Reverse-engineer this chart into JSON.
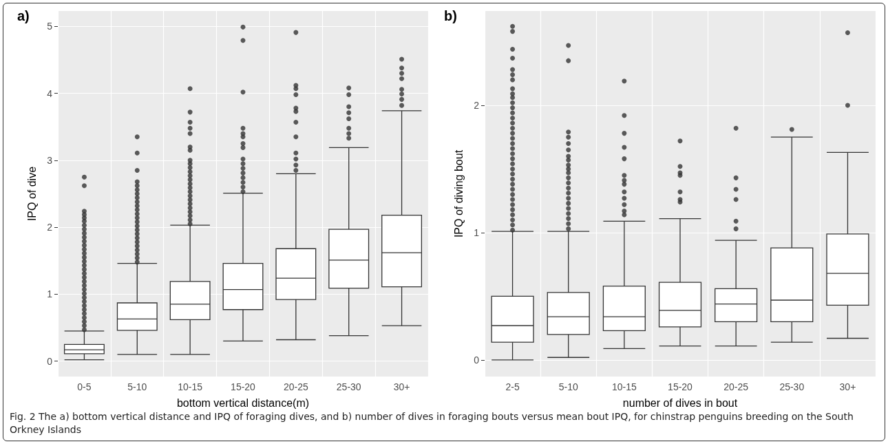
{
  "chart_data": [
    {
      "type": "box",
      "title": "a)",
      "xlabel": "bottom vertical distance(m)",
      "ylabel": "IPQ of dive",
      "categories": [
        "0-5",
        "5-10",
        "10-15",
        "15-20",
        "20-25",
        "25-30",
        "30+"
      ],
      "boxes": [
        {
          "low": 0.02,
          "q1": 0.11,
          "median": 0.17,
          "q3": 0.25,
          "high": 0.45,
          "outliers": [
            0.47,
            0.53,
            0.59,
            0.65,
            0.71,
            0.77,
            0.83,
            0.89,
            0.95,
            1.01,
            1.07,
            1.13,
            1.19,
            1.25,
            1.31,
            1.37,
            1.43,
            1.49,
            1.55,
            1.61,
            1.67,
            1.73,
            1.79,
            1.85,
            1.91,
            1.97,
            2.03,
            2.09,
            2.14,
            2.19,
            2.24,
            2.62,
            2.75
          ]
        },
        {
          "low": 0.1,
          "q1": 0.46,
          "median": 0.63,
          "q3": 0.87,
          "high": 1.46,
          "outliers": [
            1.48,
            1.54,
            1.6,
            1.66,
            1.72,
            1.78,
            1.84,
            1.9,
            1.96,
            2.02,
            2.08,
            2.14,
            2.2,
            2.26,
            2.32,
            2.38,
            2.44,
            2.5,
            2.56,
            2.62,
            2.68,
            2.85,
            3.11,
            3.35
          ]
        },
        {
          "low": 0.1,
          "q1": 0.62,
          "median": 0.85,
          "q3": 1.19,
          "high": 2.03,
          "outliers": [
            2.05,
            2.11,
            2.17,
            2.23,
            2.29,
            2.35,
            2.41,
            2.47,
            2.53,
            2.59,
            2.65,
            2.71,
            2.77,
            2.83,
            2.89,
            2.95,
            3.0,
            3.15,
            3.2,
            3.4,
            3.48,
            3.57,
            3.72,
            4.07
          ]
        },
        {
          "low": 0.3,
          "q1": 0.77,
          "median": 1.07,
          "q3": 1.46,
          "high": 2.51,
          "outliers": [
            2.53,
            2.6,
            2.67,
            2.74,
            2.81,
            2.88,
            2.95,
            3.02,
            3.19,
            3.25,
            3.35,
            3.4,
            3.48,
            4.02,
            4.79,
            4.99
          ]
        },
        {
          "low": 0.32,
          "q1": 0.92,
          "median": 1.24,
          "q3": 1.68,
          "high": 2.8,
          "outliers": [
            2.85,
            2.93,
            3.02,
            3.11,
            3.35,
            3.57,
            3.73,
            3.78,
            3.98,
            4.07,
            4.12,
            4.91
          ]
        },
        {
          "low": 0.38,
          "q1": 1.09,
          "median": 1.51,
          "q3": 1.97,
          "high": 3.19,
          "outliers": [
            3.33,
            3.4,
            3.48,
            3.62,
            3.71,
            3.8,
            3.98,
            4.08
          ]
        },
        {
          "low": 0.53,
          "q1": 1.11,
          "median": 1.62,
          "q3": 2.18,
          "high": 3.74,
          "outliers": [
            3.82,
            3.91,
            3.99,
            4.06,
            4.22,
            4.3,
            4.38,
            4.51
          ]
        }
      ],
      "ylim": [
        -0.23,
        5.23
      ],
      "yticks": [
        0,
        1,
        2,
        3,
        4,
        5
      ],
      "grid": true,
      "annotations": [
        "Fig. 2 The a) bottom vertical distance and IPQ of foraging dives, and b) number of dives in foraging bouts versus mean bout IPQ, for chinstrap penguins breeding on the South Orkney Islands"
      ]
    },
    {
      "type": "box",
      "title": "b)",
      "xlabel": "number of dives in bout",
      "ylabel": "IPQ of diving bout",
      "categories": [
        "2-5",
        "5-10",
        "10-15",
        "15-20",
        "20-25",
        "25-30",
        "30+"
      ],
      "boxes": [
        {
          "low": 0.0,
          "q1": 0.14,
          "median": 0.27,
          "q3": 0.5,
          "high": 1.01,
          "outliers": [
            1.02,
            1.06,
            1.1,
            1.14,
            1.18,
            1.22,
            1.26,
            1.3,
            1.34,
            1.38,
            1.42,
            1.46,
            1.5,
            1.54,
            1.58,
            1.62,
            1.66,
            1.7,
            1.74,
            1.78,
            1.82,
            1.86,
            1.9,
            1.94,
            1.98,
            2.02,
            2.06,
            2.09,
            2.13,
            2.2,
            2.24,
            2.28,
            2.37,
            2.44,
            2.58,
            2.62
          ]
        },
        {
          "low": 0.02,
          "q1": 0.2,
          "median": 0.34,
          "q3": 0.53,
          "high": 1.01,
          "outliers": [
            1.03,
            1.07,
            1.11,
            1.15,
            1.19,
            1.23,
            1.27,
            1.31,
            1.35,
            1.39,
            1.43,
            1.47,
            1.5,
            1.53,
            1.57,
            1.6,
            1.65,
            1.7,
            1.75,
            1.79,
            2.35,
            2.47
          ]
        },
        {
          "low": 0.09,
          "q1": 0.23,
          "median": 0.34,
          "q3": 0.58,
          "high": 1.09,
          "outliers": [
            1.14,
            1.17,
            1.22,
            1.27,
            1.32,
            1.38,
            1.41,
            1.45,
            1.58,
            1.67,
            1.78,
            1.92,
            2.19
          ]
        },
        {
          "low": 0.11,
          "q1": 0.26,
          "median": 0.39,
          "q3": 0.61,
          "high": 1.11,
          "outliers": [
            1.24,
            1.26,
            1.32,
            1.45,
            1.47,
            1.52,
            1.72
          ]
        },
        {
          "low": 0.11,
          "q1": 0.3,
          "median": 0.44,
          "q3": 0.56,
          "high": 0.94,
          "outliers": [
            1.03,
            1.09,
            1.26,
            1.34,
            1.43,
            1.82
          ]
        },
        {
          "low": 0.14,
          "q1": 0.3,
          "median": 0.47,
          "q3": 0.88,
          "high": 1.75,
          "outliers": [
            1.81
          ]
        },
        {
          "low": 0.17,
          "q1": 0.43,
          "median": 0.68,
          "q3": 0.99,
          "high": 1.63,
          "outliers": [
            2.0,
            2.57
          ]
        }
      ],
      "ylim": [
        -0.13,
        2.74
      ],
      "yticks": [
        0,
        1,
        2
      ],
      "grid": true
    }
  ]
}
